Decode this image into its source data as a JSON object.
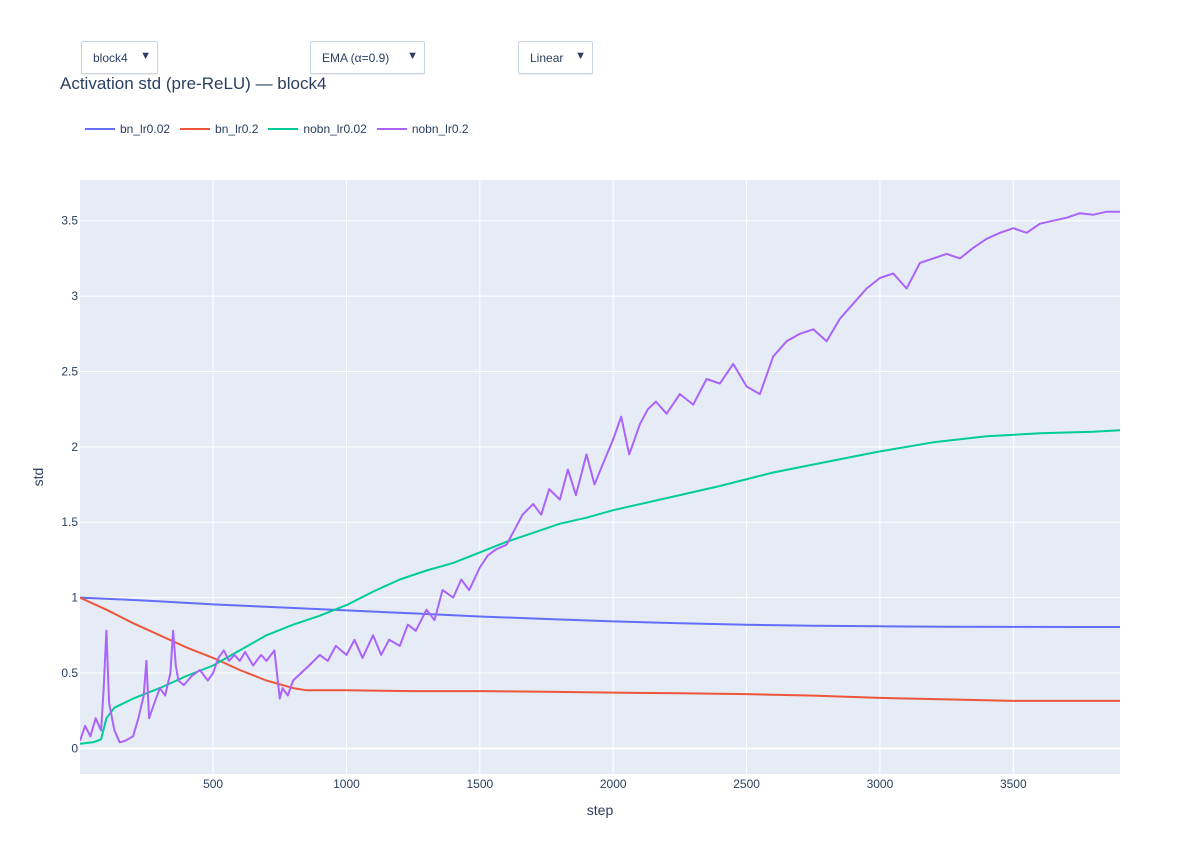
{
  "controls": {
    "block_dropdown": {
      "value": "block4",
      "caret": "▼"
    },
    "smoothing_dropdown": {
      "value": "EMA (α=0.9)",
      "caret": "▼"
    },
    "scale_dropdown": {
      "value": "Linear",
      "caret": "▼"
    }
  },
  "colors": {
    "plot_bg": "#e5ecf6",
    "grid": "#ffffff",
    "text": "#2a3f5f"
  },
  "chart_data": {
    "type": "line",
    "title": "Activation std (pre-ReLU) — block4",
    "xlabel": "step",
    "ylabel": "std",
    "xlim": [
      1,
      3900
    ],
    "ylim": [
      -0.17,
      3.77
    ],
    "x_ticks": [
      500,
      1000,
      1500,
      2000,
      2500,
      3000,
      3500
    ],
    "x_tick_labels": [
      "500",
      "1000",
      "1500",
      "2000",
      "2500",
      "3000",
      "3500"
    ],
    "y_ticks": [
      0,
      0.5,
      1,
      1.5,
      2,
      2.5,
      3,
      3.5
    ],
    "y_tick_labels": [
      "0",
      "0.5",
      "1",
      "1.5",
      "2",
      "2.5",
      "3",
      "3.5"
    ],
    "grid": true,
    "legend_position": "top-left",
    "series": [
      {
        "name": "bn_lr0.02",
        "color": "#636efa",
        "x": [
          1,
          250,
          500,
          750,
          1000,
          1250,
          1500,
          1750,
          2000,
          2250,
          2500,
          2750,
          3000,
          3250,
          3500,
          3750,
          3900
        ],
        "y": [
          1.0,
          0.98,
          0.955,
          0.935,
          0.915,
          0.895,
          0.875,
          0.858,
          0.842,
          0.83,
          0.82,
          0.813,
          0.81,
          0.807,
          0.806,
          0.805,
          0.805
        ]
      },
      {
        "name": "bn_lr0.2",
        "color": "#ef553b",
        "x": [
          1,
          100,
          200,
          300,
          400,
          500,
          600,
          700,
          800,
          850,
          1000,
          1250,
          1500,
          1750,
          2000,
          2250,
          2500,
          2750,
          3000,
          3250,
          3500,
          3750,
          3900
        ],
        "y": [
          1.0,
          0.92,
          0.83,
          0.75,
          0.67,
          0.6,
          0.52,
          0.45,
          0.4,
          0.385,
          0.385,
          0.38,
          0.38,
          0.375,
          0.37,
          0.365,
          0.36,
          0.35,
          0.335,
          0.325,
          0.315,
          0.315,
          0.315
        ]
      },
      {
        "name": "nobn_lr0.02",
        "color": "#00cc96",
        "x": [
          1,
          50,
          80,
          100,
          130,
          200,
          300,
          400,
          500,
          600,
          700,
          800,
          900,
          1000,
          1100,
          1200,
          1300,
          1400,
          1500,
          1600,
          1700,
          1800,
          1900,
          2000,
          2200,
          2400,
          2600,
          2800,
          3000,
          3200,
          3400,
          3600,
          3800,
          3900
        ],
        "y": [
          0.03,
          0.04,
          0.06,
          0.2,
          0.27,
          0.33,
          0.4,
          0.48,
          0.55,
          0.65,
          0.75,
          0.82,
          0.88,
          0.95,
          1.04,
          1.12,
          1.18,
          1.23,
          1.3,
          1.37,
          1.43,
          1.49,
          1.53,
          1.58,
          1.66,
          1.74,
          1.83,
          1.9,
          1.97,
          2.03,
          2.07,
          2.09,
          2.1,
          2.11
        ]
      },
      {
        "name": "nobn_lr0.2",
        "color": "#ab63fa",
        "x": [
          1,
          20,
          40,
          60,
          80,
          90,
          100,
          110,
          130,
          150,
          170,
          200,
          220,
          240,
          250,
          260,
          280,
          300,
          320,
          340,
          350,
          360,
          370,
          390,
          420,
          450,
          480,
          500,
          520,
          540,
          560,
          580,
          600,
          620,
          650,
          680,
          700,
          730,
          750,
          760,
          780,
          800,
          830,
          860,
          900,
          930,
          960,
          1000,
          1030,
          1060,
          1100,
          1130,
          1160,
          1200,
          1230,
          1260,
          1300,
          1330,
          1360,
          1400,
          1430,
          1460,
          1500,
          1530,
          1560,
          1600,
          1630,
          1660,
          1700,
          1730,
          1760,
          1800,
          1830,
          1860,
          1900,
          1930,
          1960,
          2000,
          2030,
          2060,
          2100,
          2130,
          2160,
          2200,
          2250,
          2300,
          2350,
          2400,
          2450,
          2500,
          2550,
          2600,
          2650,
          2700,
          2750,
          2800,
          2850,
          2900,
          2950,
          3000,
          3050,
          3100,
          3150,
          3200,
          3250,
          3300,
          3350,
          3400,
          3450,
          3500,
          3550,
          3600,
          3650,
          3700,
          3750,
          3800,
          3850,
          3900
        ],
        "y": [
          0.05,
          0.15,
          0.08,
          0.2,
          0.12,
          0.4,
          0.78,
          0.3,
          0.12,
          0.04,
          0.05,
          0.08,
          0.2,
          0.35,
          0.58,
          0.2,
          0.3,
          0.4,
          0.35,
          0.5,
          0.78,
          0.55,
          0.45,
          0.42,
          0.48,
          0.52,
          0.45,
          0.5,
          0.6,
          0.65,
          0.58,
          0.62,
          0.58,
          0.64,
          0.55,
          0.62,
          0.58,
          0.65,
          0.33,
          0.4,
          0.35,
          0.45,
          0.5,
          0.55,
          0.62,
          0.58,
          0.68,
          0.62,
          0.72,
          0.6,
          0.75,
          0.62,
          0.72,
          0.68,
          0.82,
          0.78,
          0.92,
          0.85,
          1.05,
          1.0,
          1.12,
          1.05,
          1.2,
          1.28,
          1.32,
          1.35,
          1.45,
          1.55,
          1.62,
          1.55,
          1.72,
          1.65,
          1.85,
          1.68,
          1.95,
          1.75,
          1.88,
          2.05,
          2.2,
          1.95,
          2.15,
          2.25,
          2.3,
          2.22,
          2.35,
          2.28,
          2.45,
          2.42,
          2.55,
          2.4,
          2.35,
          2.6,
          2.7,
          2.75,
          2.78,
          2.7,
          2.85,
          2.95,
          3.05,
          3.12,
          3.15,
          3.05,
          3.22,
          3.25,
          3.28,
          3.25,
          3.32,
          3.38,
          3.42,
          3.45,
          3.42,
          3.48,
          3.5,
          3.52,
          3.55,
          3.54,
          3.56,
          3.56
        ]
      }
    ]
  }
}
